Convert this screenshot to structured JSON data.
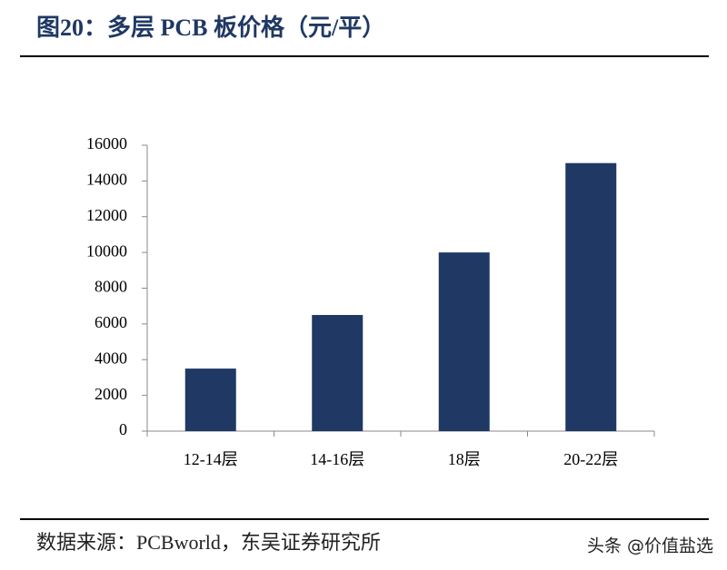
{
  "chart_data": {
    "type": "bar",
    "title": "图20：多层 PCB 板价格（元/平）",
    "categories": [
      "12-14层",
      "14-16层",
      "18层",
      "20-22层"
    ],
    "values": [
      3500,
      6500,
      10000,
      15000
    ],
    "color": "#1f3864",
    "ylim": [
      0,
      16000
    ],
    "yticks": [
      0,
      2000,
      4000,
      6000,
      8000,
      10000,
      12000,
      14000,
      16000
    ],
    "grid": false,
    "source": "数据来源：PCBworld，东吴证券研究所",
    "watermark": "头条 @价值盐选"
  }
}
